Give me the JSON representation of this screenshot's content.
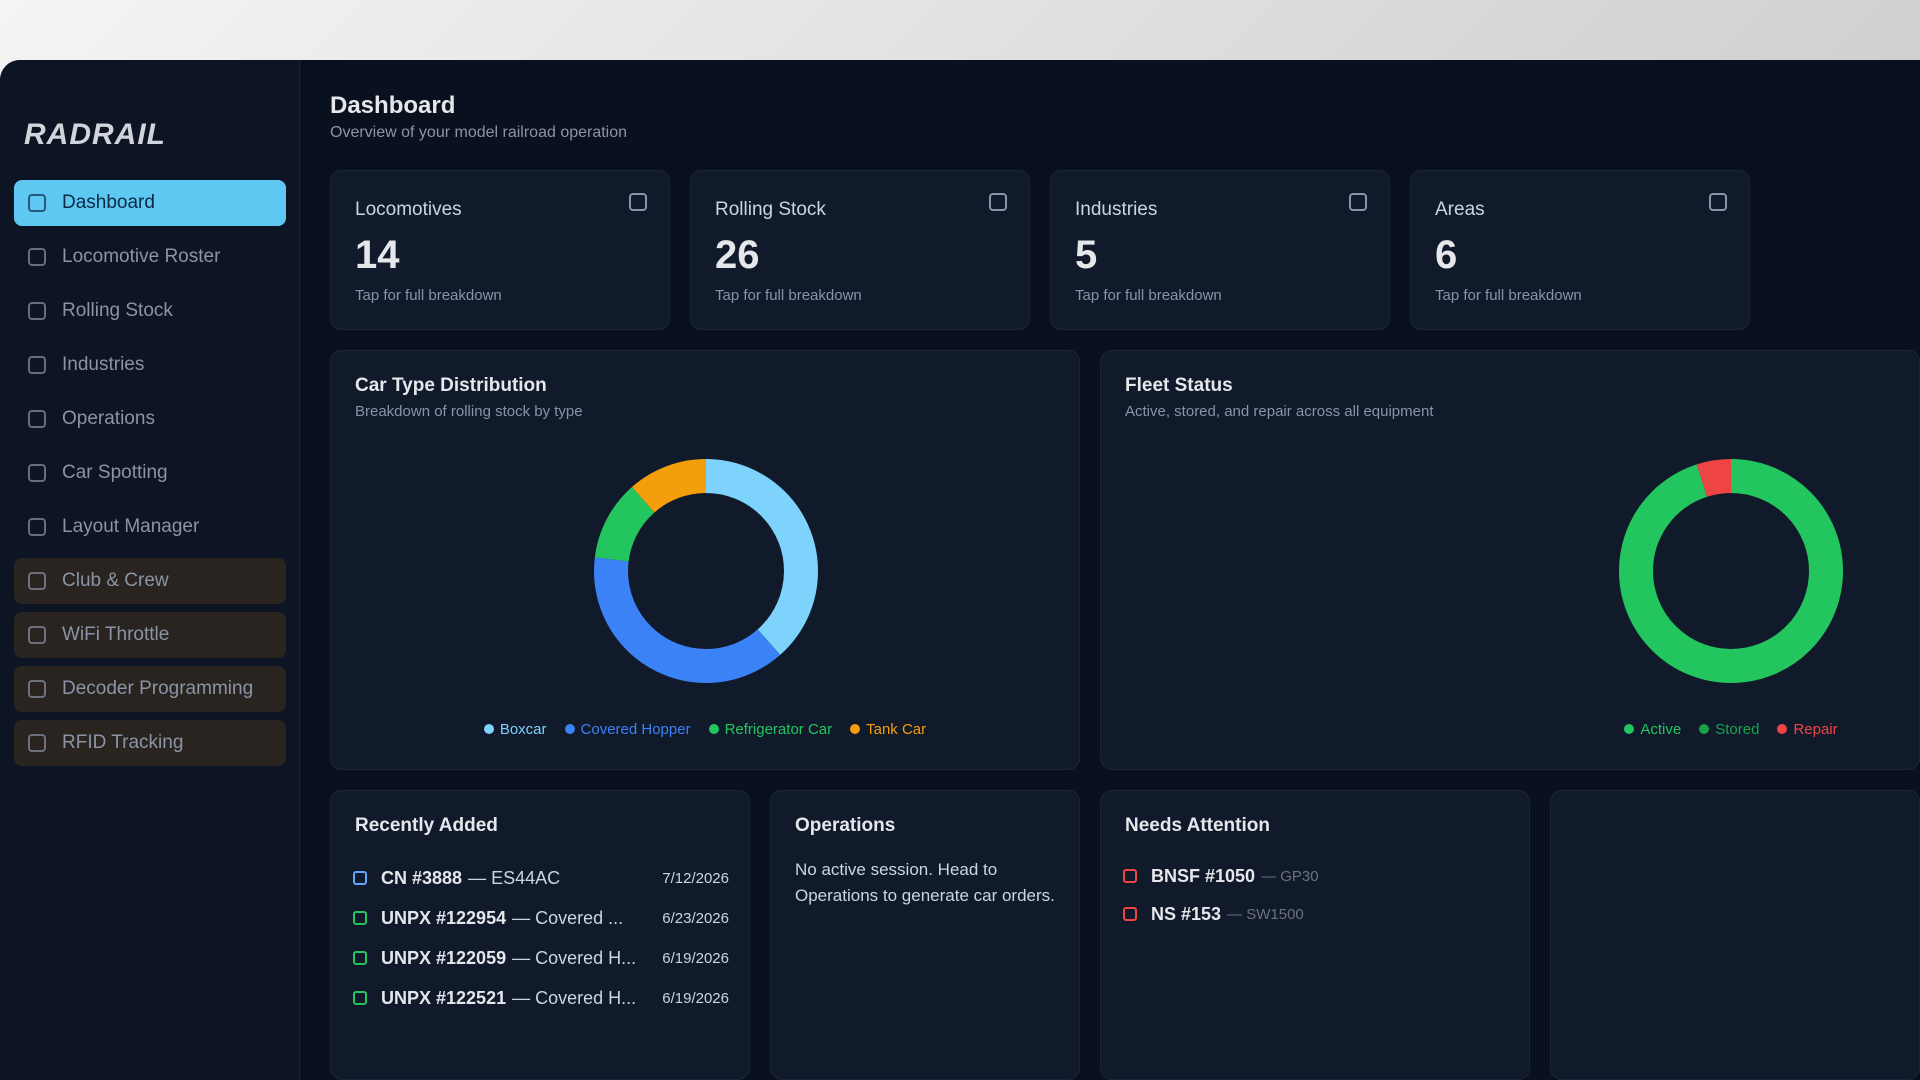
{
  "window": {
    "brand": "RADRAIL"
  },
  "nav": [
    {
      "label": "Dashboard",
      "active": true
    },
    {
      "label": "Locomotive Roster"
    },
    {
      "label": "Rolling Stock"
    },
    {
      "label": "Industries"
    },
    {
      "label": "Operations"
    },
    {
      "label": "Car Spotting"
    },
    {
      "label": "Layout Manager"
    },
    {
      "label": "Club & Crew"
    },
    {
      "label": "WiFi Throttle"
    },
    {
      "label": "Decoder Programming"
    },
    {
      "label": "RFID Tracking"
    }
  ],
  "header": {
    "title": "Dashboard",
    "subtitle": "Overview of your model railroad operation"
  },
  "stats": [
    {
      "label": "Locomotives",
      "value": "14",
      "hint": "Tap for full breakdown"
    },
    {
      "label": "Rolling Stock",
      "value": "26",
      "hint": "Tap for full breakdown"
    },
    {
      "label": "Industries",
      "value": "5",
      "hint": "Tap for full breakdown"
    },
    {
      "label": "Areas",
      "value": "6",
      "hint": "Tap for full breakdown"
    }
  ],
  "chart_data": [
    {
      "type": "pie",
      "donut": true,
      "title": "Car Type Distribution",
      "subtitle": "Breakdown of rolling stock by type",
      "categories": [
        "Boxcar",
        "Covered Hopper",
        "Refrigerator Car",
        "Tank Car"
      ],
      "values": [
        10,
        10,
        3,
        3
      ],
      "colors": [
        "#7dd3fc",
        "#3b82f6",
        "#22c55e",
        "#f59e0b"
      ]
    },
    {
      "type": "pie",
      "donut": true,
      "title": "Fleet Status",
      "subtitle": "Active, stored, and repair across all equipment",
      "categories": [
        "Active",
        "Stored",
        "Repair"
      ],
      "values": [
        38,
        0,
        2
      ],
      "colors": [
        "#22c55e",
        "#16a34a",
        "#ef4444"
      ]
    }
  ],
  "recent": {
    "title": "Recently Added",
    "rows": [
      {
        "name": "CN #3888",
        "detail": "— ES44AC",
        "date": "7/12/2026"
      },
      {
        "name": "UNPX #122954",
        "detail": "— Covered ...",
        "date": "6/23/2026"
      },
      {
        "name": "UNPX #122059",
        "detail": "— Covered H...",
        "date": "6/19/2026"
      },
      {
        "name": "UNPX #122521",
        "detail": "— Covered H...",
        "date": "6/19/2026"
      }
    ]
  },
  "operations": {
    "title": "Operations",
    "text": "No active session. Head to Operations to generate car orders."
  },
  "attention": {
    "title": "Needs Attention",
    "rows": [
      {
        "name": "BNSF #1050",
        "detail": "— GP30"
      },
      {
        "name": "NS #153",
        "detail": "— SW1500"
      }
    ]
  }
}
